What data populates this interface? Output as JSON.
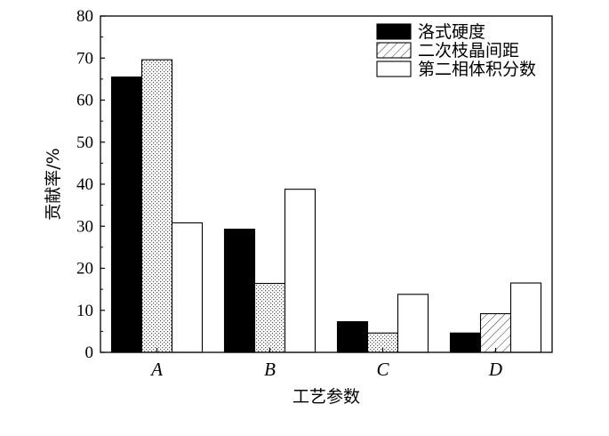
{
  "chart_data": {
    "type": "bar",
    "xlabel": "工艺参数",
    "ylabel": "贡献率/%",
    "categories": [
      "A",
      "B",
      "C",
      "D"
    ],
    "ylim": [
      0,
      80
    ],
    "yticks": [
      0,
      10,
      20,
      30,
      40,
      50,
      60,
      70,
      80
    ],
    "legend_position": "top-right",
    "grid": false,
    "series": [
      {
        "name": "洛式硬度",
        "values": [
          65.5,
          29.3,
          7.3,
          4.6
        ],
        "fill": "solid-black",
        "color": "#000000"
      },
      {
        "name": "二次枝晶间距",
        "values": [
          69.6,
          16.4,
          4.6,
          9.2
        ],
        "fill": "pattern",
        "color": "#808080"
      },
      {
        "name": "第二相体积分数",
        "values": [
          30.8,
          38.8,
          13.8,
          16.5
        ],
        "fill": "white",
        "color": "#ffffff"
      }
    ]
  }
}
